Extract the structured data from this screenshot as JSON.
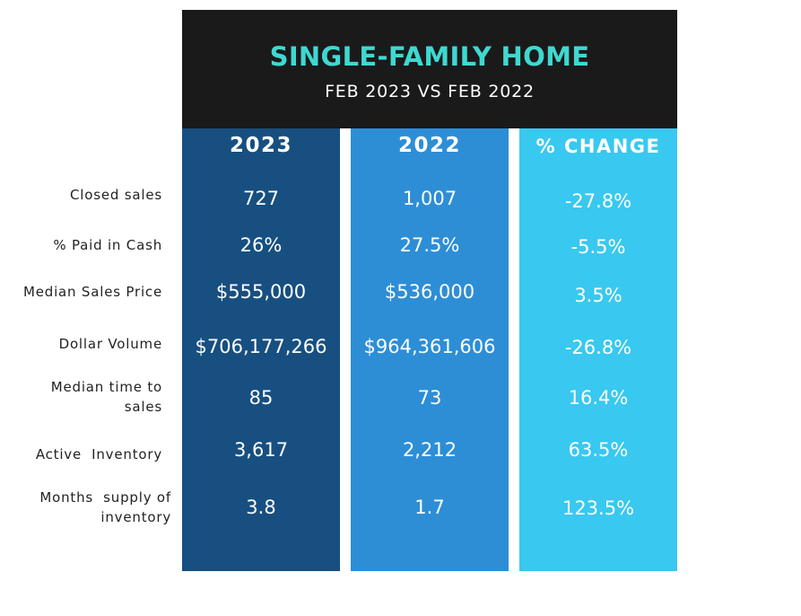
{
  "header": {
    "title": "SINGLE-FAMILY HOME",
    "subtitle": "FEB 2023 VS FEB 2022"
  },
  "colors": {
    "header_bg": "#1a1a1a",
    "title": "#3fd8d0",
    "col_2023": "#174f80",
    "col_2022": "#2d8ed6",
    "col_change": "#39c8ef"
  },
  "chart_data": {
    "type": "table",
    "title": "SINGLE-FAMILY HOME",
    "subtitle": "FEB 2023 VS FEB 2022",
    "columns": [
      "2023",
      "2022",
      "% CHANGE"
    ],
    "rows": [
      {
        "label_lines": [
          "Closed sales"
        ],
        "values": [
          "727",
          "1,007",
          "-27.8%"
        ]
      },
      {
        "label_lines": [
          "% Paid in Cash"
        ],
        "values": [
          "26%",
          "27.5%",
          "-5.5%"
        ]
      },
      {
        "label_lines": [
          "Median Sales Price"
        ],
        "values": [
          "$555,000",
          "$536,000",
          "3.5%"
        ]
      },
      {
        "label_lines": [
          "Dollar Volume"
        ],
        "values": [
          "$706,177,266",
          "$964,361,606",
          "-26.8%"
        ]
      },
      {
        "label_lines": [
          "Median time to",
          "sales"
        ],
        "values": [
          "85",
          "73",
          "16.4%"
        ]
      },
      {
        "label_lines": [
          "Active  Inventory"
        ],
        "values": [
          "3,617",
          "2,212",
          "63.5%"
        ]
      },
      {
        "label_lines": [
          "Months  supply of",
          "inventory"
        ],
        "values": [
          "3.8",
          "1.7",
          "123.5%"
        ]
      }
    ]
  }
}
